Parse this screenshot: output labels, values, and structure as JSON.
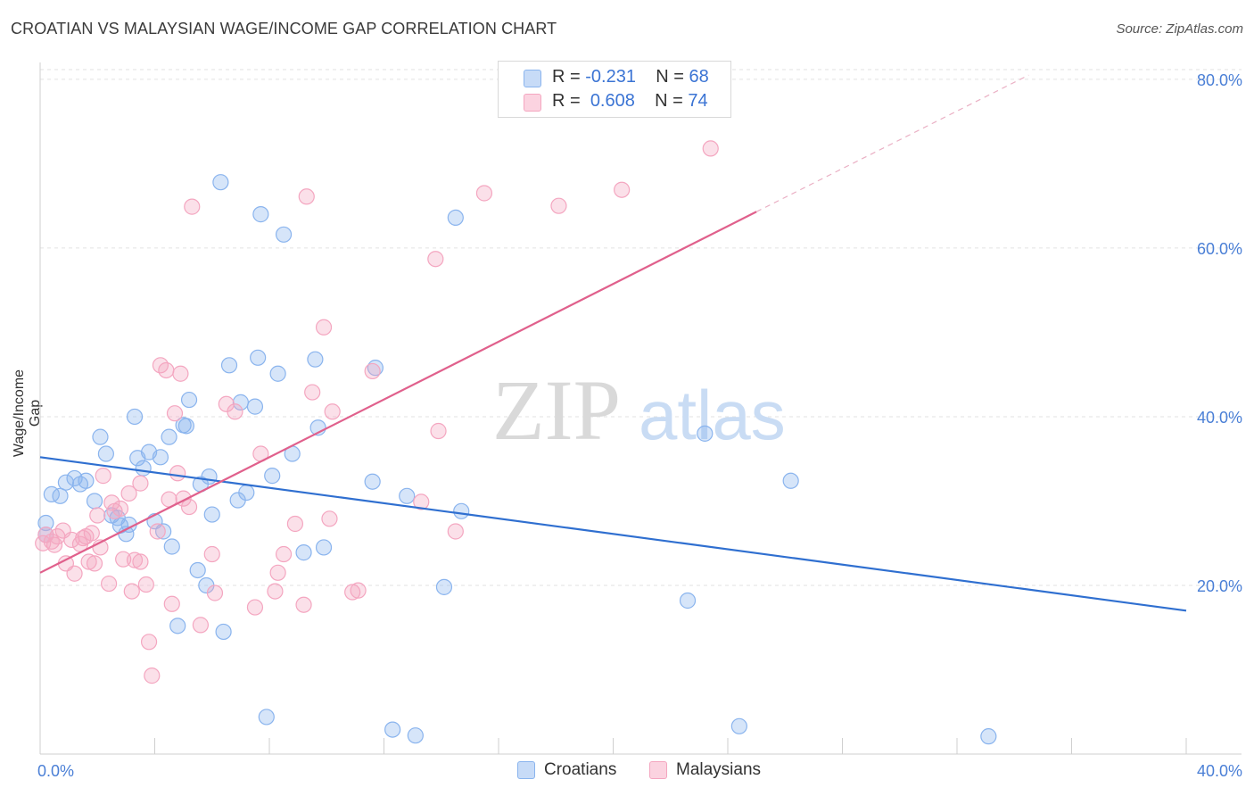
{
  "header": {
    "title": "CROATIAN VS MALAYSIAN WAGE/INCOME GAP CORRELATION CHART",
    "source": "Source: ZipAtlas.com"
  },
  "watermark": {
    "zip": "ZIP",
    "atlas": "atlas"
  },
  "legend": {
    "rows": [
      {
        "r_label": "R = ",
        "r_value": "-0.231",
        "n_label": "N = ",
        "n_value": "68",
        "color": "#8ab4ee"
      },
      {
        "r_label": "R = ",
        "r_value": "0.608",
        "n_label": "N = ",
        "n_value": "74",
        "color": "#f4a6c0"
      }
    ]
  },
  "bottom_legend": [
    {
      "label": "Croatians",
      "color": "#8ab4ee"
    },
    {
      "label": "Malaysians",
      "color": "#f4a6c0"
    }
  ],
  "chart_data": {
    "type": "scatter",
    "ylabel": "Wage/Income Gap",
    "xlim": [
      0,
      40
    ],
    "ylim": [
      0,
      82
    ],
    "x_tick_labels": [
      {
        "value": 0,
        "label": "0.0%"
      },
      {
        "value": 40,
        "label": "40.0%"
      }
    ],
    "y_tick_labels": [
      {
        "value": 20,
        "label": "20.0%"
      },
      {
        "value": 40,
        "label": "40.0%"
      },
      {
        "value": 60,
        "label": "60.0%"
      },
      {
        "value": 80,
        "label": "80.0%"
      }
    ],
    "grid": true,
    "series": [
      {
        "name": "Croatians",
        "color": "#8ab4ee",
        "line_color": "#2f6fd0",
        "trend": {
          "x": [
            0,
            40
          ],
          "y": [
            35.2,
            17.0
          ]
        },
        "points": [
          [
            0.2,
            27.4
          ],
          [
            0.2,
            26.0
          ],
          [
            0.4,
            30.8
          ],
          [
            0.7,
            30.6
          ],
          [
            0.9,
            32.2
          ],
          [
            1.2,
            32.7
          ],
          [
            1.4,
            32.0
          ],
          [
            1.6,
            32.4
          ],
          [
            1.9,
            30.0
          ],
          [
            2.1,
            37.6
          ],
          [
            2.3,
            35.6
          ],
          [
            2.5,
            28.3
          ],
          [
            2.7,
            28.0
          ],
          [
            2.8,
            27.1
          ],
          [
            3.0,
            26.1
          ],
          [
            3.1,
            27.2
          ],
          [
            3.3,
            40.0
          ],
          [
            3.4,
            35.1
          ],
          [
            3.6,
            33.9
          ],
          [
            3.8,
            35.8
          ],
          [
            4.0,
            27.6
          ],
          [
            4.2,
            35.2
          ],
          [
            4.3,
            26.4
          ],
          [
            4.5,
            37.6
          ],
          [
            4.6,
            24.6
          ],
          [
            4.8,
            15.2
          ],
          [
            5.0,
            39.0
          ],
          [
            5.2,
            42.0
          ],
          [
            5.1,
            38.9
          ],
          [
            5.5,
            21.8
          ],
          [
            5.6,
            32.0
          ],
          [
            5.8,
            20.0
          ],
          [
            5.9,
            32.9
          ],
          [
            6.0,
            28.4
          ],
          [
            6.3,
            67.8
          ],
          [
            6.4,
            14.5
          ],
          [
            6.6,
            46.1
          ],
          [
            6.9,
            30.1
          ],
          [
            7.0,
            41.7
          ],
          [
            7.2,
            31.0
          ],
          [
            7.5,
            41.2
          ],
          [
            7.6,
            47.0
          ],
          [
            7.7,
            64.0
          ],
          [
            7.9,
            4.4
          ],
          [
            8.1,
            33.0
          ],
          [
            8.3,
            45.1
          ],
          [
            8.5,
            61.6
          ],
          [
            8.8,
            35.6
          ],
          [
            9.2,
            23.9
          ],
          [
            9.6,
            46.8
          ],
          [
            9.7,
            38.7
          ],
          [
            9.9,
            24.5
          ],
          [
            11.7,
            45.8
          ],
          [
            11.6,
            32.3
          ],
          [
            12.3,
            2.9
          ],
          [
            12.8,
            30.6
          ],
          [
            13.1,
            2.2
          ],
          [
            14.1,
            19.8
          ],
          [
            14.5,
            63.6
          ],
          [
            14.7,
            28.8
          ],
          [
            22.6,
            18.2
          ],
          [
            23.2,
            38.0
          ],
          [
            24.4,
            3.3
          ],
          [
            26.2,
            32.4
          ],
          [
            33.1,
            2.1
          ]
        ]
      },
      {
        "name": "Malaysians",
        "color": "#f4a6c0",
        "line_color": "#e0608c",
        "trend": {
          "x": [
            0,
            25
          ],
          "y": [
            21.5,
            64.3
          ]
        },
        "trend_dashed": {
          "x": [
            25,
            34.5
          ],
          "y": [
            64.3,
            80.5
          ]
        },
        "points": [
          [
            0.1,
            25.0
          ],
          [
            0.2,
            26.0
          ],
          [
            0.4,
            25.2
          ],
          [
            0.5,
            24.8
          ],
          [
            0.6,
            25.8
          ],
          [
            0.8,
            26.5
          ],
          [
            0.9,
            22.6
          ],
          [
            1.1,
            25.4
          ],
          [
            1.2,
            21.4
          ],
          [
            1.4,
            24.9
          ],
          [
            1.5,
            25.6
          ],
          [
            1.6,
            25.8
          ],
          [
            1.7,
            22.8
          ],
          [
            1.8,
            26.2
          ],
          [
            1.9,
            22.6
          ],
          [
            2.0,
            28.3
          ],
          [
            2.1,
            24.5
          ],
          [
            2.2,
            33.0
          ],
          [
            2.4,
            20.2
          ],
          [
            2.5,
            29.8
          ],
          [
            2.6,
            28.8
          ],
          [
            2.8,
            29.1
          ],
          [
            2.9,
            23.1
          ],
          [
            3.1,
            30.9
          ],
          [
            3.2,
            19.3
          ],
          [
            3.3,
            23.0
          ],
          [
            3.5,
            32.1
          ],
          [
            3.5,
            22.8
          ],
          [
            3.7,
            20.1
          ],
          [
            3.8,
            13.3
          ],
          [
            3.9,
            9.3
          ],
          [
            4.1,
            26.4
          ],
          [
            4.2,
            46.1
          ],
          [
            4.4,
            45.5
          ],
          [
            4.5,
            30.2
          ],
          [
            4.7,
            40.4
          ],
          [
            4.6,
            17.8
          ],
          [
            4.9,
            45.1
          ],
          [
            4.8,
            33.3
          ],
          [
            5.0,
            30.3
          ],
          [
            5.2,
            29.3
          ],
          [
            5.3,
            64.9
          ],
          [
            5.6,
            15.3
          ],
          [
            6.0,
            23.7
          ],
          [
            6.1,
            19.1
          ],
          [
            6.5,
            41.5
          ],
          [
            6.8,
            40.6
          ],
          [
            7.5,
            17.4
          ],
          [
            7.7,
            35.6
          ],
          [
            8.2,
            19.3
          ],
          [
            8.3,
            21.5
          ],
          [
            8.5,
            23.7
          ],
          [
            8.9,
            27.3
          ],
          [
            9.2,
            17.7
          ],
          [
            9.3,
            66.1
          ],
          [
            9.5,
            42.9
          ],
          [
            9.9,
            50.6
          ],
          [
            10.2,
            40.6
          ],
          [
            10.1,
            27.9
          ],
          [
            10.9,
            19.2
          ],
          [
            11.1,
            19.4
          ],
          [
            11.6,
            45.4
          ],
          [
            13.3,
            29.9
          ],
          [
            13.9,
            38.3
          ],
          [
            13.8,
            58.7
          ],
          [
            14.5,
            26.4
          ],
          [
            15.5,
            66.5
          ],
          [
            18.1,
            65.0
          ],
          [
            20.3,
            66.9
          ],
          [
            23.4,
            71.8
          ]
        ]
      }
    ]
  }
}
